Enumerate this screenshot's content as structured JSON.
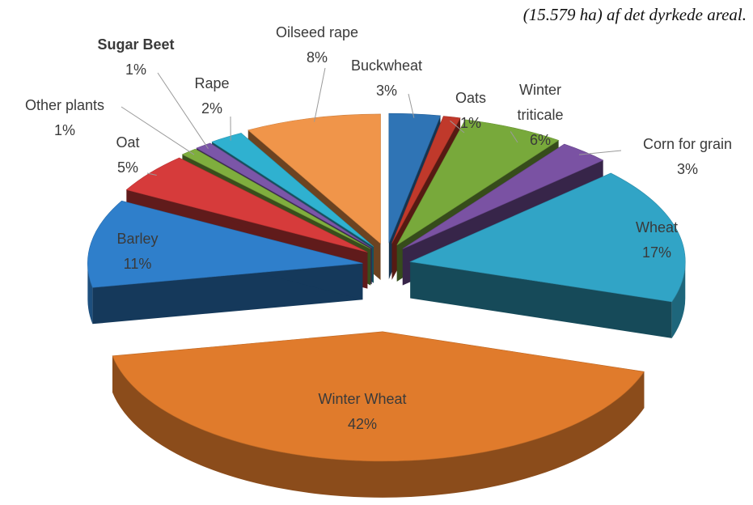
{
  "caption": "(15.579 ha) af det dyrkede areal.",
  "chart_data": {
    "type": "pie",
    "categories": [
      "Buckwheat",
      "Oats",
      "Winter triticale",
      "Corn for grain",
      "Wheat",
      "Winter Wheat",
      "Barley",
      "Oat",
      "Other plants",
      "Sugar Beet",
      "Rape",
      "Oilseed rape"
    ],
    "values": [
      3,
      1,
      6,
      3,
      17,
      42,
      11,
      5,
      1,
      1,
      2,
      8
    ],
    "value_labels": [
      "3%",
      "1%",
      "6%",
      "3%",
      "17%",
      "42%",
      "11%",
      "5%",
      "1%",
      "1%",
      "2%",
      "8%"
    ],
    "colors": [
      "#2f74b5",
      "#c0392b",
      "#78a93b",
      "#7a52a3",
      "#31a4c6",
      "#e07b2c",
      "#2f7fcb",
      "#d63b3b",
      "#7fae3e",
      "#7b56a8",
      "#2fb1d0",
      "#f0954a"
    ],
    "label_weights": [
      "normal",
      "normal",
      "normal",
      "normal",
      "normal",
      "normal",
      "normal",
      "normal",
      "normal",
      "bold",
      "normal",
      "normal"
    ]
  }
}
